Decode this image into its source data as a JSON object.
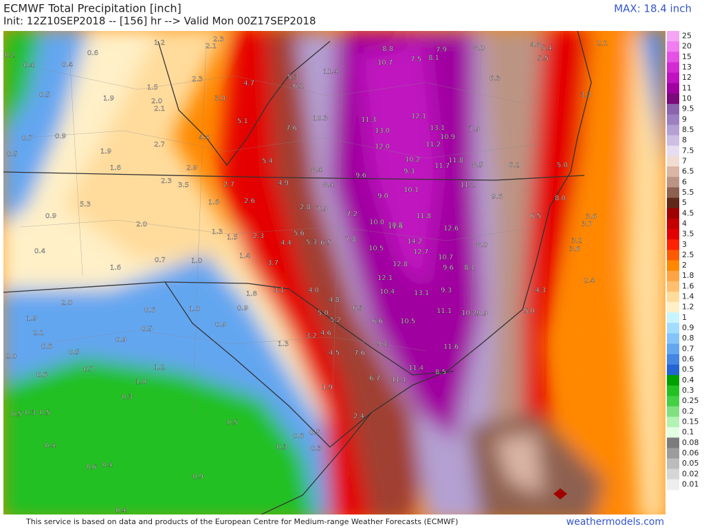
{
  "header": {
    "title": "ECMWF Total Precipitation [inch]",
    "init": "Init: 12Z10SEP2018 -- [156] hr --> Valid Mon 00Z17SEP2018",
    "max": "MAX: 18.4 inch"
  },
  "footer": {
    "credit": "This service is based on data and products of the European Centre for Medium-range Weather Forecasts (ECMWF)",
    "site": "weathermodels.com"
  },
  "colorbar": {
    "labels": [
      "25",
      "20",
      "15",
      "13",
      "12",
      "11",
      "10",
      "9.5",
      "9",
      "8.5",
      "8",
      "7.5",
      "7",
      "6.5",
      "6",
      "5.5",
      "5",
      "4.5",
      "4",
      "3.5",
      "3",
      "2.5",
      "2",
      "1.8",
      "1.6",
      "1.4",
      "1.2",
      "1",
      "0.9",
      "0.8",
      "0.7",
      "0.6",
      "0.5",
      "0.4",
      "0.3",
      "0.25",
      "0.2",
      "0.15",
      "0.1",
      "0.08",
      "0.06",
      "0.05",
      "0.02",
      "0.01"
    ],
    "colors": [
      "#f4a6f4",
      "#f27cf2",
      "#e650e6",
      "#d42ad4",
      "#c012c0",
      "#a000a0",
      "#7a0a7a",
      "#8a64ac",
      "#9c80c0",
      "#b4a0d2",
      "#cdbfe2",
      "#e6def0",
      "#f2dcd2",
      "#dab4a4",
      "#bc9484",
      "#8e6050",
      "#602818",
      "#a00000",
      "#c40000",
      "#e40000",
      "#ff2200",
      "#ff5a00",
      "#ff8800",
      "#ffa444",
      "#ffbf6e",
      "#ffdc9c",
      "#fff0c8",
      "#c8f4ff",
      "#a2dcff",
      "#84c4fa",
      "#64a6f0",
      "#4486e2",
      "#2464d4",
      "#00a000",
      "#22c022",
      "#44d044",
      "#80e080",
      "#b4f2b4",
      "#e2ffe2",
      "#7c7c7c",
      "#9c9c9c",
      "#bcbcbc",
      "#d6d6d6",
      "#eeeeee"
    ]
  },
  "map_labels": [
    "0.2",
    "0.4",
    "0.6",
    "0.4",
    "1.2",
    "2.3",
    "2.1",
    "0.5",
    "1.5",
    "1.9",
    "2.0",
    "2.1",
    "2.3",
    "3.0",
    "4.7",
    "5.3",
    "6.1",
    "11.4",
    "8.8",
    "10.7",
    "7.5",
    "8.1",
    "7.9",
    "8.0",
    "4.8",
    "5.4",
    "5.5",
    "2.1",
    "0.7",
    "0.9",
    "2.7",
    "4.4",
    "5.1",
    "7.6",
    "10.3",
    "11.3",
    "13.0",
    "12.1",
    "13.1",
    "10.9",
    "7.9",
    "6.3",
    "3.3",
    "0.5",
    "1.9",
    "1.6",
    "2.9",
    "5.4",
    "8.4",
    "9.6",
    "12.0",
    "10.2",
    "11.2",
    "11.8",
    "8.5",
    "6.2",
    "5.0",
    "2.3",
    "3.5",
    "2.7",
    "4.9",
    "8.4",
    "9.3",
    "10.1",
    "11.7",
    "11.2",
    "9.6",
    "8.0",
    "5.3",
    "1.6",
    "2.6",
    "2.8",
    "7.9",
    "7.2",
    "9.0",
    "10.8",
    "11.8",
    "12.6",
    "6.5",
    "3.6",
    "3.7",
    "0.9",
    "2.0",
    "1.3",
    "1.5",
    "2.3",
    "5.6",
    "10.0",
    "11.6",
    "14.2",
    "12.7",
    "10.7",
    "8.0",
    "3.2",
    "3.6",
    "0.4",
    "1.4",
    "1.6",
    "0.7",
    "1.0",
    "3.7",
    "4.4",
    "5.3",
    "6.5",
    "7.8",
    "10.5",
    "12.8",
    "9.6",
    "8.1",
    "2.4",
    "1.8",
    "3.1",
    "4.0",
    "4.8",
    "12.1",
    "10.4",
    "13.1",
    "9.3",
    "4.3",
    "5.0",
    "2.0",
    "1.9",
    "0.6",
    "1.0",
    "0.9",
    "5.0",
    "5.2",
    "6.3",
    "6.6",
    "10.5",
    "11.1",
    "10.2",
    "9.9",
    "2.1",
    "0.5",
    "0.9",
    "1.3",
    "3.2",
    "4.6",
    "9.1",
    "11.6",
    "2.0",
    "0.6",
    "0.5",
    "0.9",
    "1.2",
    "4.5",
    "7.6",
    "11.4",
    "8.5",
    "0.6",
    "0.7",
    "1.0",
    "1.9",
    "6.7",
    "11.1",
    "0.5",
    "0.3",
    "0.5",
    "0.3",
    "2.4",
    "0.4",
    "0.6",
    "0.4",
    "0.9",
    "0.3",
    "0.6",
    "0.5",
    "0.3",
    "0.5",
    "0.4"
  ]
}
